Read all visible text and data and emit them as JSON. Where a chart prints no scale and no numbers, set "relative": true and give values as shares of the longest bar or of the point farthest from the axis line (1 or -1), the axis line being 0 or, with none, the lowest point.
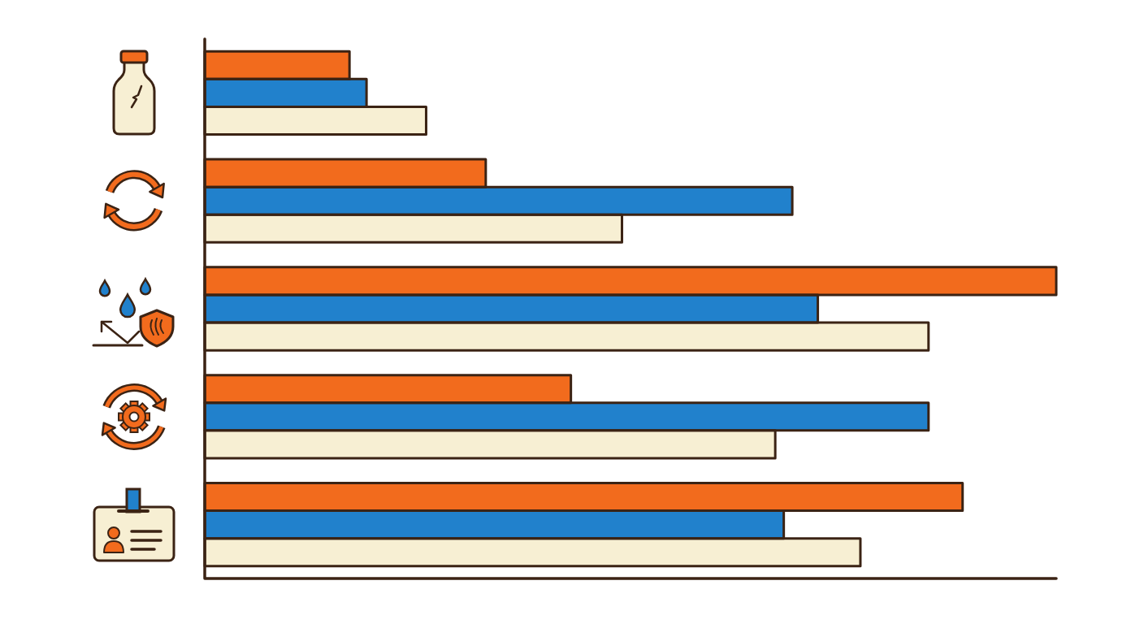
{
  "chart_data": {
    "type": "bar",
    "orientation": "horizontal",
    "relative": true,
    "categories": [
      null,
      null,
      null,
      null,
      null
    ],
    "series": [
      {
        "color": "#f26b1d",
        "values": [
          0.17,
          0.33,
          1,
          0.43,
          0.89
        ]
      },
      {
        "color": "#2181cc",
        "values": [
          0.19,
          0.69,
          0.72,
          0.85,
          0.68
        ]
      },
      {
        "color": "#f7efd3",
        "values": [
          0.26,
          0.49,
          0.85,
          0.67,
          0.77
        ]
      }
    ]
  }
}
